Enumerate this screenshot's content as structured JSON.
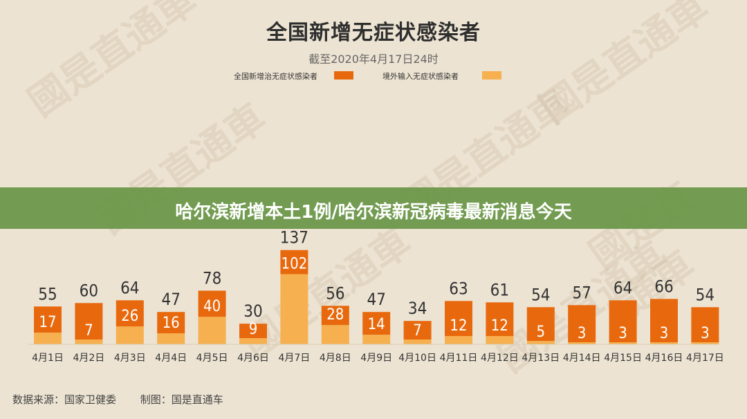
{
  "banner": {
    "text": "哈尔滨新增本土1例/哈尔滨新冠病毒最新消息今天"
  },
  "watermark": "國是直通車",
  "footer": {
    "source": "数据来源：国家卫健委",
    "maker": "制图：国是直通车"
  },
  "chart_data": {
    "type": "bar",
    "stacked": true,
    "title": "全国新增无症状感染者",
    "subtitle": "截至2020年4月17日24时",
    "categories": [
      "4月1日",
      "4月2日",
      "4月3日",
      "4月4日",
      "4月5日",
      "4月6日",
      "4月7日",
      "4月8日",
      "4月9日",
      "4月10日",
      "4月11日",
      "4月12日",
      "4月13日",
      "4月14日",
      "4月15日",
      "4月16日",
      "4月17日"
    ],
    "totals": [
      55,
      60,
      64,
      47,
      78,
      30,
      137,
      56,
      47,
      34,
      63,
      61,
      54,
      57,
      64,
      66,
      54
    ],
    "series": [
      {
        "name": "全国新增治无症状感染者",
        "color": "#e8690d",
        "values": [
          38,
          53,
          38,
          31,
          38,
          21,
          35,
          28,
          33,
          27,
          51,
          49,
          49,
          54,
          61,
          63,
          51
        ]
      },
      {
        "name": "境外输入无症状感染者",
        "color": "#f6b04f",
        "values": [
          17,
          7,
          26,
          16,
          40,
          9,
          102,
          28,
          14,
          7,
          12,
          12,
          5,
          3,
          3,
          3,
          3
        ]
      }
    ],
    "ylim": [
      0,
      150
    ],
    "grid": false,
    "legend": "top"
  }
}
